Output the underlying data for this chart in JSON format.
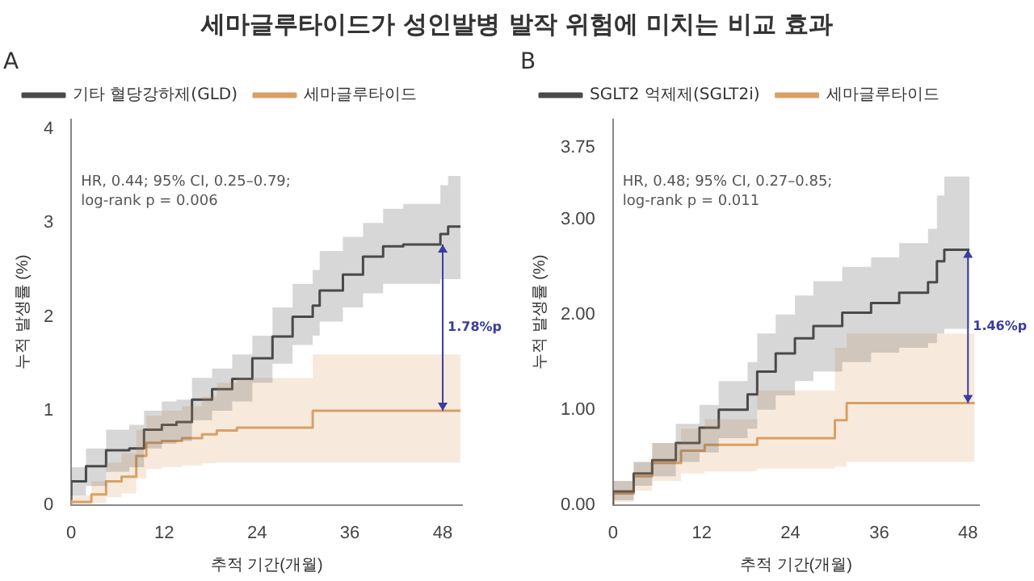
{
  "chart_data": [
    {
      "type": "step",
      "title": "세마글루타이드가 성인발병 발작 위험에 미치는 비교 효과",
      "xlabel": "추적 기간(개월)",
      "ylabel": "누적 발생률 (%)",
      "xlim": [
        0,
        50.5
      ],
      "xticks": [
        0,
        12,
        24,
        36,
        48
      ],
      "ylim": [
        0,
        4.1
      ],
      "yticks": [
        0,
        1,
        2,
        3,
        4
      ],
      "legend": "top left",
      "grid": false,
      "annotations": [
        "A",
        "HR, 0.44; 95% CI, 0.25–0.79;",
        "log-rank p = 0.006",
        "1.78%p"
      ],
      "series": [
        {
          "name": "기타 혈당강하제(GLD)",
          "color": "#4a4a4a",
          "x": [
            0,
            1.9,
            4.5,
            7.5,
            9.4,
            11.7,
            13.6,
            15.6,
            18.2,
            20.8,
            23.4,
            26,
            28.6,
            31.2,
            32.1,
            35.1,
            37.7,
            40.3,
            42.9,
            47.7,
            48.7,
            50.3
          ],
          "values": [
            0.05,
            0.25,
            0.41,
            0.58,
            0.6,
            0.8,
            0.85,
            0.88,
            1.12,
            1.23,
            1.34,
            1.56,
            1.79,
            2.0,
            2.12,
            2.28,
            2.45,
            2.64,
            2.75,
            2.77,
            2.88,
            2.96
          ],
          "lower": [
            0,
            0.1,
            0.2,
            0.35,
            0.4,
            0.6,
            0.65,
            0.68,
            0.9,
            1.0,
            1.1,
            1.3,
            1.5,
            1.7,
            1.8,
            1.95,
            2.1,
            2.25,
            2.35,
            2.35,
            2.4,
            2.4
          ],
          "upper": [
            0.1,
            0.4,
            0.6,
            0.8,
            0.85,
            1.0,
            1.1,
            1.12,
            1.35,
            1.45,
            1.6,
            1.8,
            2.1,
            2.35,
            2.5,
            2.7,
            2.85,
            3.0,
            3.15,
            3.2,
            3.4,
            3.5
          ]
        },
        {
          "name": "세마글루타이드",
          "color": "#d9a066",
          "x": [
            0,
            2.6,
            4.5,
            6.5,
            8.4,
            9.7,
            11.7,
            14.3,
            16.9,
            18.8,
            21.4,
            31.2,
            43.8,
            50.3
          ],
          "values": [
            0,
            0.03,
            0.11,
            0.25,
            0.3,
            0.52,
            0.66,
            0.68,
            0.71,
            0.75,
            0.79,
            0.82,
            1.0,
            1.0
          ],
          "lower": [
            0,
            0,
            0.02,
            0.08,
            0.12,
            0.28,
            0.38,
            0.4,
            0.42,
            0.44,
            0.45,
            0.45,
            0.45,
            0.45
          ],
          "upper": [
            0,
            0.1,
            0.25,
            0.45,
            0.55,
            0.8,
            0.95,
            1.0,
            1.05,
            1.15,
            1.3,
            1.35,
            1.6,
            1.6
          ]
        }
      ]
    },
    {
      "type": "step",
      "xlabel": "추적 기간(개월)",
      "ylabel": "누적 발생률 (%)",
      "xlim": [
        0,
        49.5
      ],
      "xticks": [
        0,
        12,
        24,
        36,
        48
      ],
      "ylim": [
        0,
        4.05
      ],
      "yticks": [
        {
          "value": 0,
          "label": "0.00"
        },
        {
          "value": 1,
          "label": "1.00"
        },
        {
          "value": 2,
          "label": "2.00"
        },
        {
          "value": 3,
          "label": "3.00"
        },
        {
          "value": 3.75,
          "label": "3.75"
        }
      ],
      "legend": "top left",
      "grid": false,
      "annotations": [
        "B",
        "HR, 0.48; 95% CI, 0.27–0.85;",
        "log-rank p = 0.011",
        "1.46%p"
      ],
      "series": [
        {
          "name": "SGLT2 억제제(SGLT2i)",
          "color": "#4a4a4a",
          "x": [
            0,
            2.8,
            5.3,
            8.5,
            11.7,
            14.3,
            18.2,
            19.5,
            22,
            24.6,
            27.1,
            31,
            34.9,
            38.7,
            42.6,
            43.8,
            44.8,
            47.7,
            48.2
          ],
          "values": [
            0,
            0.14,
            0.33,
            0.47,
            0.65,
            0.81,
            1.0,
            1.16,
            1.4,
            1.59,
            1.75,
            1.88,
            2.02,
            2.12,
            2.23,
            2.34,
            2.56,
            2.68,
            2.68
          ],
          "lower": [
            0,
            0.05,
            0.2,
            0.3,
            0.45,
            0.55,
            0.7,
            0.8,
            1.0,
            1.15,
            1.3,
            1.4,
            1.5,
            1.6,
            1.65,
            1.7,
            1.8,
            1.85,
            1.85
          ],
          "upper": [
            0,
            0.25,
            0.45,
            0.65,
            0.85,
            1.05,
            1.3,
            1.5,
            1.8,
            2.0,
            2.2,
            2.35,
            2.5,
            2.6,
            2.75,
            2.9,
            3.25,
            3.45,
            3.45
          ]
        },
        {
          "name": "세마글루타이드",
          "color": "#d9a066",
          "x": [
            0,
            2.8,
            5.3,
            9.2,
            12.4,
            19.5,
            30,
            31.6,
            43.2,
            48.9
          ],
          "values": [
            0,
            0.12,
            0.3,
            0.44,
            0.57,
            0.63,
            0.7,
            0.89,
            1.07,
            1.07
          ],
          "lower": [
            0,
            0.03,
            0.15,
            0.25,
            0.33,
            0.35,
            0.38,
            0.4,
            0.45,
            0.45
          ],
          "upper": [
            0,
            0.25,
            0.45,
            0.65,
            0.8,
            0.9,
            1.2,
            1.65,
            1.8,
            1.8
          ]
        }
      ]
    }
  ]
}
